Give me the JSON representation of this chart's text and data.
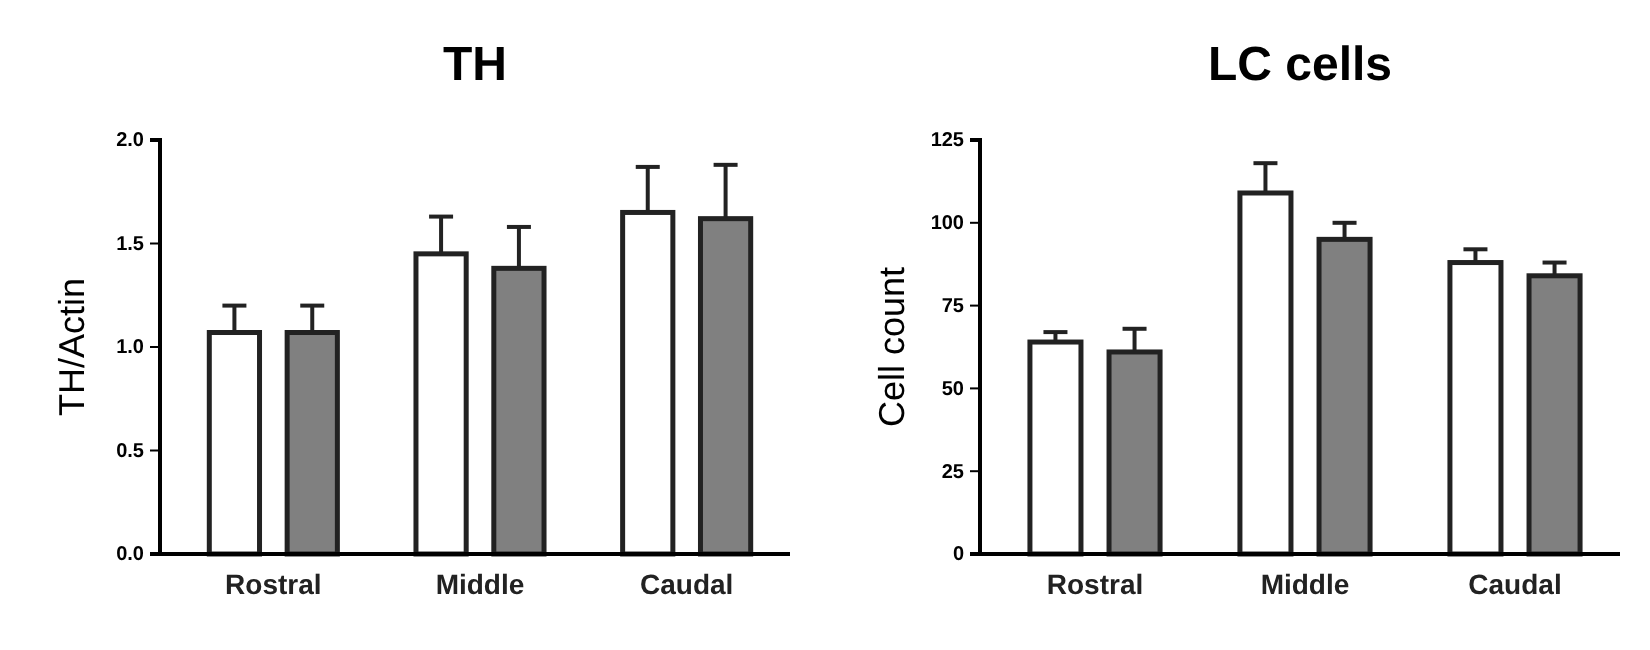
{
  "chart_data": [
    {
      "type": "bar",
      "title": "TH",
      "ylabel": "TH/Actin",
      "categories": [
        "Rostral",
        "Middle",
        "Caudal"
      ],
      "ylim": [
        0,
        2
      ],
      "yticks": [
        {
          "value": 0,
          "label": "0.0"
        },
        {
          "value": 0.5,
          "label": "0.5"
        },
        {
          "value": 1,
          "label": "1.0"
        },
        {
          "value": 1.5,
          "label": "1.5"
        },
        {
          "value": 2,
          "label": "2.0"
        }
      ],
      "series": [
        {
          "color": "#ffffff",
          "values": [
            1.07,
            1.45,
            1.65
          ],
          "errors": [
            [
              1.07,
              1.2
            ],
            [
              1.45,
              1.63
            ],
            [
              1.65,
              1.87
            ]
          ]
        },
        {
          "color": "#808080",
          "values": [
            1.07,
            1.38,
            1.62
          ],
          "errors": [
            [
              1.07,
              1.2
            ],
            [
              1.38,
              1.58
            ],
            [
              1.62,
              1.88
            ]
          ]
        }
      ]
    },
    {
      "type": "bar",
      "title": "LC cells",
      "ylabel": "Cell count",
      "categories": [
        "Rostral",
        "Middle",
        "Caudal"
      ],
      "ylim": [
        0,
        125
      ],
      "yticks": [
        0,
        25,
        50,
        75,
        100,
        125
      ],
      "series": [
        {
          "color": "#ffffff",
          "values": [
            64,
            109,
            88
          ],
          "errors": [
            [
              64,
              67
            ],
            [
              109,
              118
            ],
            [
              88,
              92
            ]
          ]
        },
        {
          "color": "#808080",
          "values": [
            61,
            95,
            84
          ],
          "errors": [
            [
              61,
              68
            ],
            [
              95,
              100
            ],
            [
              84,
              88
            ]
          ]
        }
      ]
    }
  ]
}
